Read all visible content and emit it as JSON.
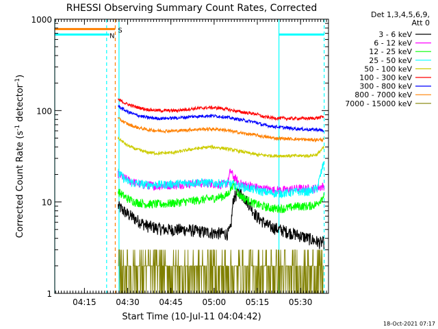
{
  "chart_data": {
    "type": "line",
    "title": "RHESSI Observing Summary Count Rates, Corrected",
    "xlabel": "Start Time (10-Jul-11 04:04:42)",
    "ylabel_main": "Corrected Count Rate (s",
    "ylabel_sup1": "-1",
    "ylabel_mid": " detector",
    "ylabel_sup2": "-1",
    "ylabel_end": ")",
    "y_scale": "log",
    "ylim": [
      1,
      1000
    ],
    "xlim_minutes": [
      0,
      95
    ],
    "x_ticks": [
      {
        "label": "04:15",
        "minute": 10.3
      },
      {
        "label": "04:30",
        "minute": 25.3
      },
      {
        "label": "04:45",
        "minute": 40.3
      },
      {
        "label": "05:00",
        "minute": 55.3
      },
      {
        "label": "05:15",
        "minute": 70.3
      },
      {
        "label": "05:30",
        "minute": 85.3
      }
    ],
    "y_ticks": [
      {
        "label": "1",
        "value": 1
      },
      {
        "label": "10",
        "value": 10
      },
      {
        "label": "100",
        "value": 100
      },
      {
        "label": "1000",
        "value": 1000
      }
    ],
    "legend_header": [
      "Det 1,3,4,5,6,9,",
      "Att 0"
    ],
    "legend_position": "right",
    "series": [
      {
        "name": "3 - 6 keV",
        "color": "#000000",
        "points": [
          [
            22,
            9
          ],
          [
            25,
            7.5
          ],
          [
            28,
            6.5
          ],
          [
            32,
            5.5
          ],
          [
            38,
            5
          ],
          [
            45,
            5
          ],
          [
            50,
            4.8
          ],
          [
            55,
            4.6
          ],
          [
            60,
            4.5
          ],
          [
            61,
            5
          ],
          [
            62,
            11
          ],
          [
            64,
            13
          ],
          [
            67,
            10
          ],
          [
            70,
            7
          ],
          [
            74,
            5.5
          ],
          [
            78,
            5
          ],
          [
            82,
            4.6
          ],
          [
            86,
            4.2
          ],
          [
            88,
            4
          ],
          [
            90,
            3.8
          ],
          [
            92,
            3.6
          ],
          [
            93.5,
            3.6
          ]
        ]
      },
      {
        "name": "6 - 12 keV",
        "color": "#ff00ff",
        "points": [
          [
            22,
            20
          ],
          [
            26,
            17
          ],
          [
            30,
            15.5
          ],
          [
            36,
            15
          ],
          [
            42,
            15.5
          ],
          [
            48,
            16
          ],
          [
            54,
            16
          ],
          [
            58,
            15.5
          ],
          [
            60,
            16
          ],
          [
            61,
            22
          ],
          [
            62,
            19
          ],
          [
            64,
            16
          ],
          [
            68,
            15
          ],
          [
            72,
            14
          ],
          [
            76,
            13.5
          ],
          [
            80,
            13.5
          ],
          [
            84,
            14
          ],
          [
            88,
            14
          ],
          [
            90,
            14
          ],
          [
            93.5,
            15
          ]
        ]
      },
      {
        "name": "12 - 25 keV",
        "color": "#00ff00",
        "points": [
          [
            22,
            13
          ],
          [
            25,
            11
          ],
          [
            28,
            10
          ],
          [
            32,
            9.5
          ],
          [
            38,
            9.5
          ],
          [
            44,
            10
          ],
          [
            50,
            10.5
          ],
          [
            55,
            11
          ],
          [
            58,
            11.5
          ],
          [
            60,
            12
          ],
          [
            62,
            16
          ],
          [
            64,
            12
          ],
          [
            68,
            10
          ],
          [
            72,
            9
          ],
          [
            76,
            8.5
          ],
          [
            80,
            8.5
          ],
          [
            84,
            9
          ],
          [
            88,
            9
          ],
          [
            91,
            9.5
          ],
          [
            93.5,
            12
          ]
        ]
      },
      {
        "name": "25 - 50 keV",
        "color": "#00ffff",
        "points": [
          [
            22,
            21
          ],
          [
            25,
            17
          ],
          [
            28,
            16
          ],
          [
            32,
            15.5
          ],
          [
            38,
            15.5
          ],
          [
            44,
            16
          ],
          [
            50,
            16.5
          ],
          [
            55,
            16
          ],
          [
            60,
            16
          ],
          [
            64,
            15
          ],
          [
            68,
            14
          ],
          [
            72,
            13
          ],
          [
            76,
            12.5
          ],
          [
            80,
            12.5
          ],
          [
            84,
            13
          ],
          [
            88,
            13
          ],
          [
            91,
            14
          ],
          [
            93.5,
            28
          ]
        ]
      },
      {
        "name": "50 - 100 keV",
        "color": "#cccc00",
        "points": [
          [
            22,
            50
          ],
          [
            25,
            42
          ],
          [
            28,
            38
          ],
          [
            32,
            35
          ],
          [
            36,
            34
          ],
          [
            42,
            35
          ],
          [
            48,
            38
          ],
          [
            54,
            40
          ],
          [
            58,
            39
          ],
          [
            62,
            37
          ],
          [
            66,
            35
          ],
          [
            70,
            33
          ],
          [
            76,
            32
          ],
          [
            82,
            32
          ],
          [
            88,
            32
          ],
          [
            91,
            33
          ],
          [
            93.5,
            40
          ]
        ]
      },
      {
        "name": "100 - 300 keV",
        "color": "#ff0000",
        "points": [
          [
            22,
            132
          ],
          [
            25,
            118
          ],
          [
            28,
            110
          ],
          [
            32,
            103
          ],
          [
            36,
            100
          ],
          [
            42,
            100
          ],
          [
            48,
            105
          ],
          [
            54,
            108
          ],
          [
            58,
            106
          ],
          [
            62,
            100
          ],
          [
            66,
            95
          ],
          [
            70,
            92
          ],
          [
            72,
            86
          ],
          [
            76,
            83
          ],
          [
            82,
            82
          ],
          [
            88,
            82
          ],
          [
            91,
            83
          ],
          [
            93.5,
            86
          ]
        ]
      },
      {
        "name": "300 - 800 keV",
        "color": "#0000ff",
        "points": [
          [
            22,
            112
          ],
          [
            25,
            98
          ],
          [
            28,
            90
          ],
          [
            32,
            84
          ],
          [
            36,
            82
          ],
          [
            42,
            83
          ],
          [
            48,
            86
          ],
          [
            54,
            88
          ],
          [
            58,
            86
          ],
          [
            62,
            82
          ],
          [
            66,
            78
          ],
          [
            70,
            74
          ],
          [
            72,
            70
          ],
          [
            76,
            67
          ],
          [
            82,
            64
          ],
          [
            88,
            62
          ],
          [
            91,
            62
          ],
          [
            93.5,
            60
          ]
        ]
      },
      {
        "name": "800 - 7000 keV",
        "color": "#ff8000",
        "points": [
          [
            22,
            82
          ],
          [
            25,
            72
          ],
          [
            28,
            66
          ],
          [
            32,
            62
          ],
          [
            36,
            60
          ],
          [
            42,
            60
          ],
          [
            48,
            62
          ],
          [
            54,
            63
          ],
          [
            58,
            62
          ],
          [
            62,
            59
          ],
          [
            66,
            56
          ],
          [
            70,
            54
          ],
          [
            72,
            52
          ],
          [
            76,
            50
          ],
          [
            82,
            49
          ],
          [
            88,
            48
          ],
          [
            91,
            48
          ],
          [
            93.5,
            48
          ]
        ]
      },
      {
        "name": "7000 - 15000 keV",
        "color": "#808000",
        "points": [
          [
            22,
            2
          ],
          [
            30,
            2
          ],
          [
            40,
            1.9
          ],
          [
            50,
            2
          ],
          [
            60,
            2
          ],
          [
            70,
            1.8
          ],
          [
            80,
            1.9
          ],
          [
            90,
            1.9
          ],
          [
            93.5,
            2
          ]
        ]
      }
    ],
    "markers": [
      {
        "label": "S",
        "color": "#ff8000",
        "y_value": 780,
        "x_start": 0,
        "x_end": 21
      },
      {
        "label": "N",
        "color": "#00ffff",
        "y_value": 680,
        "x_start": 0,
        "x_end": 19
      }
    ],
    "night_right_level": 680,
    "night_right_range": [
      77.8,
      93.5
    ],
    "vertical_lines": [
      {
        "minute": 0,
        "color": "#00ffff",
        "style": "solid"
      },
      {
        "minute": 18,
        "color": "#00ffff",
        "style": "dashed"
      },
      {
        "minute": 21,
        "color": "#ff8000",
        "style": "dashed"
      },
      {
        "minute": 22.3,
        "color": "#00ffff",
        "style": "solid"
      },
      {
        "minute": 77.8,
        "color": "#00ffff",
        "style": "solid"
      },
      {
        "minute": 93.5,
        "color": "#00ffff",
        "style": "dashed"
      }
    ],
    "footer_timestamp": "18-Oct-2021 07:17"
  }
}
